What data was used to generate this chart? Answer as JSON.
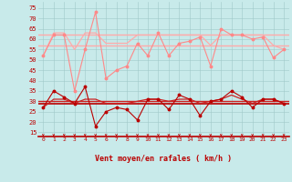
{
  "xlabel": "Vent moyen/en rafales ( km/h )",
  "xlim": [
    -0.5,
    23.5
  ],
  "ylim": [
    13,
    78
  ],
  "yticks": [
    15,
    20,
    25,
    30,
    35,
    40,
    45,
    50,
    55,
    60,
    65,
    70,
    75
  ],
  "xticks": [
    0,
    1,
    2,
    3,
    4,
    5,
    6,
    7,
    8,
    9,
    10,
    11,
    12,
    13,
    14,
    15,
    16,
    17,
    18,
    19,
    20,
    21,
    22,
    23
  ],
  "bg_color": "#c8eaea",
  "grid_color": "#a0c8c8",
  "rafales_zigzag": [
    52,
    62,
    62,
    35,
    55,
    73,
    41,
    45,
    47,
    58,
    52,
    63,
    52,
    58,
    59,
    61,
    47,
    65,
    62,
    62,
    60,
    61,
    51,
    55
  ],
  "rafales_smooth": [
    52,
    63,
    63,
    55,
    63,
    63,
    58,
    58,
    58,
    62,
    62,
    62,
    62,
    62,
    62,
    62,
    57,
    62,
    62,
    62,
    62,
    62,
    57,
    55
  ],
  "rafales_flat1": 62,
  "rafales_flat2": 57,
  "moyen_zigzag": [
    27,
    35,
    32,
    29,
    37,
    18,
    25,
    27,
    26,
    21,
    31,
    31,
    26,
    33,
    31,
    23,
    30,
    31,
    35,
    32,
    27,
    31,
    31,
    29
  ],
  "moyen_smooth": [
    27,
    31,
    31,
    29,
    31,
    31,
    29,
    29,
    29,
    30,
    31,
    31,
    30,
    31,
    31,
    29,
    30,
    31,
    33,
    31,
    29,
    31,
    31,
    29
  ],
  "moyen_flat1": 30,
  "moyen_flat2": 29,
  "color_pink_bright": "#ff8888",
  "color_pink_light": "#ffaaaa",
  "color_red_dark": "#bb0000",
  "color_red_mid": "#cc2222"
}
